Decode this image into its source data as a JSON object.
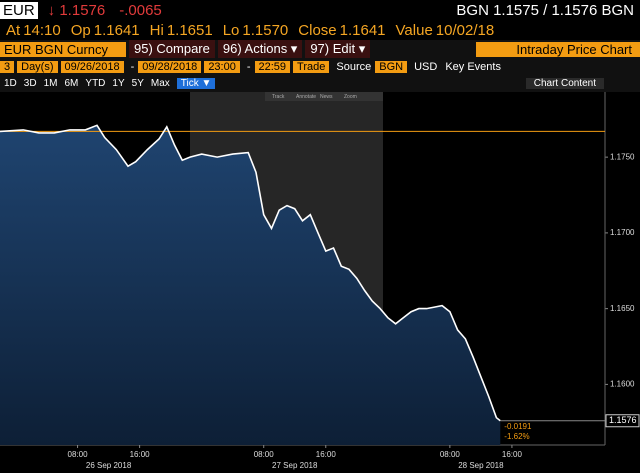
{
  "header": {
    "ticker": "EUR",
    "last": "↓ 1.1576",
    "change": "-.0065",
    "bid_ask": "BGN 1.1575 / 1.1576 BGN"
  },
  "quote": [
    {
      "label": "At",
      "value": "14:10"
    },
    {
      "label": "Op",
      "value": "1.1641"
    },
    {
      "label": "Hi",
      "value": "1.1651"
    },
    {
      "label": "Lo",
      "value": "1.1570"
    },
    {
      "label": "Close",
      "value": "1.1641"
    },
    {
      "label": "Value",
      "value": "10/02/18"
    }
  ],
  "toolbar": {
    "security": "EUR BGN Curncy",
    "buttons": [
      "95) Compare",
      "96) Actions ▾",
      "97) Edit ▾"
    ],
    "title": "Intraday Price Chart"
  },
  "settings": {
    "count": "3",
    "unit": "Day(s)",
    "start_date": "09/26/2018",
    "end_date": "09/28/2018",
    "start_time": "23:00",
    "end_time": "22:59",
    "dash": "-",
    "field": "Trade",
    "source_label": "Source",
    "source": "BGN",
    "currency": "USD",
    "key_events": "Key Events"
  },
  "periods": [
    "1D",
    "3D",
    "1M",
    "6M",
    "YTD",
    "1Y",
    "5Y",
    "Max"
  ],
  "interval": "Tick ▼",
  "chart_content": "Chart Content",
  "chart_tools": [
    "Track",
    "Annotate",
    "News",
    "Zoom"
  ],
  "chart_data": {
    "type": "line",
    "color": "#ffffff",
    "fill": "#1c3a5e",
    "x": [
      -1,
      2,
      4,
      6,
      8,
      10,
      11.5,
      12.5,
      14,
      15.5,
      16.5,
      18,
      19.5,
      20.5,
      21.5,
      22.5,
      23.5,
      25,
      27,
      29,
      31,
      32,
      33,
      34,
      35,
      36,
      37,
      38,
      39,
      40,
      41,
      42,
      43,
      44,
      45,
      46,
      47,
      48,
      49,
      50,
      51,
      52,
      53,
      54,
      55,
      56,
      57,
      58,
      59,
      60,
      61,
      62,
      63,
      63.5
    ],
    "values": [
      1.1767,
      1.1768,
      1.1766,
      1.1766,
      1.1768,
      1.1768,
      1.1771,
      1.1763,
      1.1755,
      1.1744,
      1.1747,
      1.1755,
      1.1762,
      1.177,
      1.1758,
      1.1748,
      1.175,
      1.1752,
      1.175,
      1.1752,
      1.1753,
      1.174,
      1.1712,
      1.1703,
      1.1715,
      1.1718,
      1.1716,
      1.1708,
      1.1712,
      1.17,
      1.1688,
      1.169,
      1.1678,
      1.1676,
      1.167,
      1.1662,
      1.1655,
      1.165,
      1.1644,
      1.164,
      1.1644,
      1.1648,
      1.165,
      1.165,
      1.1651,
      1.1652,
      1.1648,
      1.1636,
      1.163,
      1.1618,
      1.1605,
      1.1592,
      1.1578,
      1.1576
    ],
    "xlim": [
      -1,
      77
    ],
    "ylim": [
      1.156,
      1.1793
    ],
    "xticks": [
      {
        "value": 9,
        "label": "08:00"
      },
      {
        "value": 17,
        "label": "16:00"
      },
      {
        "value": 33,
        "label": "08:00"
      },
      {
        "value": 41,
        "label": "16:00"
      },
      {
        "value": 57,
        "label": "08:00"
      },
      {
        "value": 65,
        "label": "16:00"
      }
    ],
    "date_labels": [
      "26 Sep 2018",
      "27 Sep 2018",
      "28 Sep 2018"
    ],
    "yticks": [
      {
        "value": 1.175,
        "label": "1.1750"
      },
      {
        "value": 1.17,
        "label": "1.1700"
      },
      {
        "value": 1.165,
        "label": "1.1650"
      },
      {
        "value": 1.16,
        "label": "1.1600"
      }
    ],
    "reference": {
      "value": 1.1767,
      "color": "#f39c12"
    },
    "last_label": "1.1576",
    "change_labels": [
      "-0.0191",
      "-1.62%"
    ]
  }
}
